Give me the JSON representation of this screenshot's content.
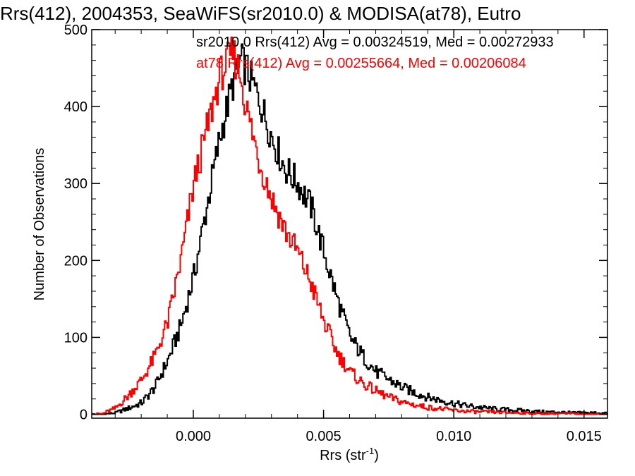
{
  "chart_data": {
    "type": "line",
    "title": "Rrs(412), 2004353, SeaWiFS(sr2010.0) & MODISA(at78), Eutro",
    "xlabel_main": "Rrs (str",
    "xlabel_sup": "-1",
    "xlabel_end": ")",
    "ylabel": "Number of Observations",
    "xlim": [
      -0.0039,
      0.0159
    ],
    "ylim": [
      -5,
      500
    ],
    "x_ticks": [
      0.0,
      0.005,
      0.01,
      0.015
    ],
    "x_tick_labels": [
      "0.000",
      "0.005",
      "0.010",
      "0.015"
    ],
    "y_ticks": [
      0,
      100,
      200,
      300,
      400,
      500
    ],
    "y_tick_labels": [
      "0",
      "100",
      "200",
      "300",
      "400",
      "500"
    ],
    "grid": false,
    "legend_position": "top-right",
    "series": [
      {
        "name": "sr2010.0",
        "color": "#000000",
        "annotation": "sr2010.0 Rrs(412) Avg = 0.00324519, Med = 0.00272933",
        "x": [
          -0.0039,
          -0.0035,
          -0.003,
          -0.0025,
          -0.002,
          -0.0015,
          -0.001,
          -0.0005,
          0.0,
          0.0005,
          0.001,
          0.0015,
          0.0018,
          0.002,
          0.0025,
          0.003,
          0.0035,
          0.004,
          0.0045,
          0.005,
          0.0055,
          0.006,
          0.0065,
          0.007,
          0.0075,
          0.008,
          0.0085,
          0.009,
          0.0095,
          0.01,
          0.0105,
          0.011,
          0.0115,
          0.012,
          0.0125,
          0.013,
          0.0135,
          0.014,
          0.0145,
          0.015,
          0.0155,
          0.0159
        ],
        "y": [
          0,
          0,
          2,
          8,
          15,
          35,
          70,
          115,
          180,
          270,
          360,
          430,
          460,
          450,
          410,
          360,
          320,
          300,
          270,
          210,
          150,
          100,
          75,
          55,
          45,
          35,
          28,
          22,
          18,
          14,
          11,
          9,
          7,
          6,
          5,
          4,
          3,
          3,
          2,
          2,
          2,
          1
        ]
      },
      {
        "name": "at78",
        "color": "#ff0000",
        "annotation": "at78 Rrs(412) Avg = 0.00255664, Med = 0.00206084",
        "x": [
          -0.0039,
          -0.0035,
          -0.003,
          -0.0025,
          -0.002,
          -0.0015,
          -0.001,
          -0.0005,
          0.0,
          0.0005,
          0.001,
          0.0015,
          0.0018,
          0.002,
          0.0025,
          0.003,
          0.0035,
          0.004,
          0.0045,
          0.005,
          0.0055,
          0.006,
          0.0065,
          0.007,
          0.0075,
          0.008,
          0.0085,
          0.009,
          0.0095,
          0.01,
          0.0105,
          0.011,
          0.0115,
          0.012,
          0.0125,
          0.013,
          0.0135,
          0.014,
          0.0145,
          0.015,
          0.0155,
          0.0159
        ],
        "y": [
          0,
          1,
          8,
          25,
          45,
          75,
          120,
          200,
          300,
          370,
          440,
          470,
          440,
          400,
          330,
          280,
          240,
          210,
          170,
          120,
          80,
          55,
          40,
          30,
          22,
          16,
          12,
          9,
          7,
          5,
          4,
          3,
          3,
          2,
          2,
          1,
          1,
          1,
          1,
          0,
          0,
          0
        ]
      }
    ]
  }
}
